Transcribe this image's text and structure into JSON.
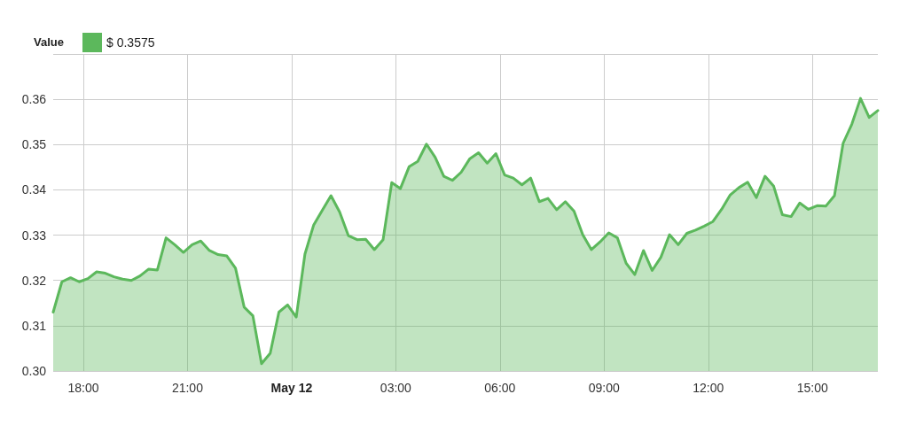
{
  "chart_data": {
    "type": "area",
    "legend_title": "Value",
    "x": [
      "--05-11T17:08",
      "--05-11T17:23",
      "--05-11T17:38",
      "--05-11T17:53",
      "--05-11T18:08",
      "--05-11T18:23",
      "--05-11T18:38",
      "--05-11T18:53",
      "--05-11T19:08",
      "--05-11T19:23",
      "--05-11T19:38",
      "--05-11T19:53",
      "--05-11T20:08",
      "--05-11T20:23",
      "--05-11T20:38",
      "--05-11T20:53",
      "--05-11T21:08",
      "--05-11T21:23",
      "--05-11T21:38",
      "--05-11T21:53",
      "--05-11T22:08",
      "--05-11T22:23",
      "--05-11T22:38",
      "--05-11T22:53",
      "--05-11T23:08",
      "--05-11T23:23",
      "--05-11T23:38",
      "--05-11T23:53",
      "--05-12T00:08",
      "--05-12T00:23",
      "--05-12T00:38",
      "--05-12T00:53",
      "--05-12T01:08",
      "--05-12T01:23",
      "--05-12T01:38",
      "--05-12T01:53",
      "--05-12T02:08",
      "--05-12T02:23",
      "--05-12T02:38",
      "--05-12T02:53",
      "--05-12T03:08",
      "--05-12T03:23",
      "--05-12T03:38",
      "--05-12T03:53",
      "--05-12T04:08",
      "--05-12T04:23",
      "--05-12T04:38",
      "--05-12T04:53",
      "--05-12T05:08",
      "--05-12T05:23",
      "--05-12T05:38",
      "--05-12T05:53",
      "--05-12T06:08",
      "--05-12T06:23",
      "--05-12T06:38",
      "--05-12T06:53",
      "--05-12T07:08",
      "--05-12T07:23",
      "--05-12T07:38",
      "--05-12T07:53",
      "--05-12T08:08",
      "--05-12T08:23",
      "--05-12T08:38",
      "--05-12T08:53",
      "--05-12T09:08",
      "--05-12T09:23",
      "--05-12T09:38",
      "--05-12T09:53",
      "--05-12T10:08",
      "--05-12T10:23",
      "--05-12T10:38",
      "--05-12T10:53",
      "--05-12T11:08",
      "--05-12T11:23",
      "--05-12T11:38",
      "--05-12T11:53",
      "--05-12T12:08",
      "--05-12T12:23",
      "--05-12T12:38",
      "--05-12T12:53",
      "--05-12T13:08",
      "--05-12T13:23",
      "--05-12T13:38",
      "--05-12T13:53",
      "--05-12T14:08",
      "--05-12T14:23",
      "--05-12T14:38",
      "--05-12T14:53",
      "--05-12T15:08",
      "--05-12T15:23",
      "--05-12T15:38",
      "--05-12T15:53",
      "--05-12T16:08",
      "--05-12T16:23",
      "--05-12T16:38",
      "--05-12T16:53"
    ],
    "series": [
      {
        "name": "$ 0.3575",
        "color": "#5cb85c",
        "values": [
          0.313,
          0.3197,
          0.3206,
          0.3197,
          0.3204,
          0.3219,
          0.3216,
          0.3208,
          0.3203,
          0.32,
          0.321,
          0.3225,
          0.3223,
          0.3294,
          0.3279,
          0.3262,
          0.3279,
          0.3287,
          0.3266,
          0.3257,
          0.3254,
          0.3227,
          0.3141,
          0.3122,
          0.3016,
          0.3039,
          0.313,
          0.3146,
          0.3119,
          0.3258,
          0.3322,
          0.3355,
          0.3387,
          0.3351,
          0.3299,
          0.329,
          0.3291,
          0.3268,
          0.329,
          0.3416,
          0.3403,
          0.3451,
          0.3463,
          0.3501,
          0.3472,
          0.343,
          0.3421,
          0.3439,
          0.3469,
          0.3482,
          0.3459,
          0.348,
          0.3433,
          0.3426,
          0.3411,
          0.3426,
          0.3374,
          0.3381,
          0.3356,
          0.3374,
          0.3353,
          0.3301,
          0.3268,
          0.3285,
          0.3305,
          0.3294,
          0.3238,
          0.3213,
          0.3266,
          0.3222,
          0.3251,
          0.3301,
          0.3279,
          0.3304,
          0.3311,
          0.332,
          0.333,
          0.3357,
          0.3389,
          0.3405,
          0.3417,
          0.3383,
          0.343,
          0.3408,
          0.3345,
          0.3341,
          0.3371,
          0.3357,
          0.3365,
          0.3364,
          0.3387,
          0.3503,
          0.3545,
          0.3602,
          0.356,
          0.3575
        ]
      }
    ],
    "xlim": [
      "--05-11T17:08",
      "--05-12T16:53"
    ],
    "xticks": [
      {
        "value": "--05-11T18:00",
        "label": "18:00"
      },
      {
        "value": "--05-11T21:00",
        "label": "21:00"
      },
      {
        "value": "--05-12T00:00",
        "label": "May 12"
      },
      {
        "value": "--05-12T03:00",
        "label": "03:00"
      },
      {
        "value": "--05-12T06:00",
        "label": "06:00"
      },
      {
        "value": "--05-12T09:00",
        "label": "09:00"
      },
      {
        "value": "--05-12T12:00",
        "label": "12:00"
      },
      {
        "value": "--05-12T15:00",
        "label": "15:00"
      }
    ],
    "ylim": [
      0.3,
      0.37
    ],
    "yticks": [
      {
        "value": 0.3,
        "label": "0.30"
      },
      0.31,
      0.32,
      0.33,
      0.34,
      0.35,
      0.36,
      {
        "value": 0.37,
        "label": null
      }
    ],
    "grid": true,
    "legend": "top left",
    "marker": "none",
    "line_style": "solid"
  }
}
